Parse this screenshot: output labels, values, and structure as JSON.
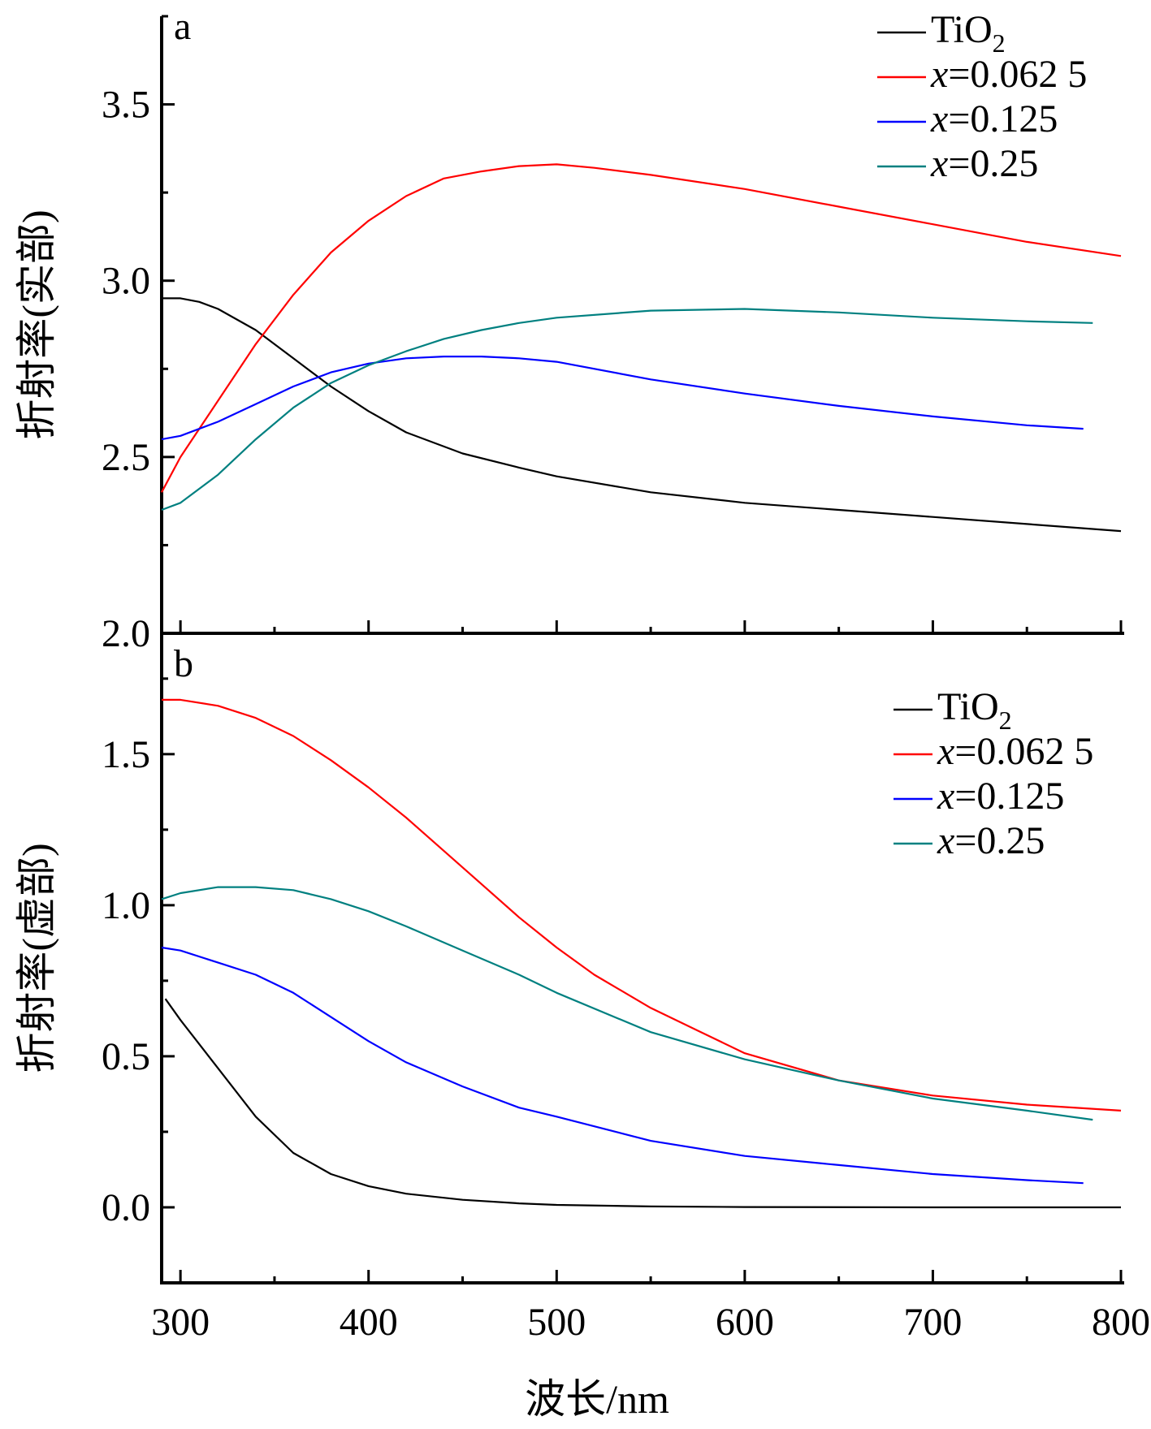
{
  "xlabel": "波长/nm",
  "chart_data": [
    {
      "type": "line",
      "panel_label": "a",
      "ylabel": "折射率(实部)",
      "xlim": [
        290,
        800
      ],
      "ylim": [
        2.0,
        3.75
      ],
      "xticks": [
        300,
        400,
        500,
        600,
        700,
        800
      ],
      "yticks": [
        2.0,
        2.5,
        3.0,
        3.5
      ],
      "ytick_labels": [
        "2.0",
        "2.5",
        "3.0",
        "3.5"
      ],
      "legend_position": "top-right",
      "series": [
        {
          "name": "TiO2",
          "legend": {
            "main": "TiO",
            "sub": "2"
          },
          "color": "#000000",
          "x": [
            290,
            300,
            310,
            320,
            340,
            360,
            380,
            400,
            420,
            450,
            480,
            500,
            550,
            600,
            650,
            700,
            750,
            800
          ],
          "y": [
            2.95,
            2.95,
            2.94,
            2.92,
            2.86,
            2.78,
            2.7,
            2.63,
            2.57,
            2.51,
            2.47,
            2.445,
            2.4,
            2.37,
            2.35,
            2.33,
            2.31,
            2.29
          ]
        },
        {
          "name": "x=0.062 5",
          "legend": {
            "var": "x",
            "rest": "=0.062 5"
          },
          "color": "#ff0000",
          "x": [
            290,
            300,
            320,
            340,
            360,
            380,
            400,
            420,
            440,
            460,
            480,
            500,
            520,
            550,
            600,
            650,
            700,
            750,
            800
          ],
          "y": [
            2.4,
            2.5,
            2.66,
            2.82,
            2.96,
            3.08,
            3.17,
            3.24,
            3.29,
            3.31,
            3.325,
            3.33,
            3.32,
            3.3,
            3.26,
            3.21,
            3.16,
            3.11,
            3.07
          ]
        },
        {
          "name": "x=0.125",
          "legend": {
            "var": "x",
            "rest": "=0.125"
          },
          "color": "#0000ff",
          "x": [
            290,
            300,
            320,
            340,
            360,
            380,
            400,
            420,
            440,
            460,
            480,
            500,
            550,
            600,
            650,
            700,
            750,
            780
          ],
          "y": [
            2.55,
            2.56,
            2.6,
            2.65,
            2.7,
            2.74,
            2.765,
            2.78,
            2.785,
            2.785,
            2.78,
            2.77,
            2.72,
            2.68,
            2.645,
            2.615,
            2.59,
            2.58
          ]
        },
        {
          "name": "x=0.25",
          "legend": {
            "var": "x",
            "rest": "=0.25"
          },
          "color": "#008080",
          "x": [
            290,
            300,
            320,
            340,
            360,
            380,
            400,
            420,
            440,
            460,
            480,
            500,
            550,
            600,
            650,
            700,
            750,
            785
          ],
          "y": [
            2.35,
            2.37,
            2.45,
            2.55,
            2.64,
            2.71,
            2.76,
            2.8,
            2.835,
            2.86,
            2.88,
            2.895,
            2.915,
            2.92,
            2.91,
            2.895,
            2.885,
            2.88
          ]
        }
      ]
    },
    {
      "type": "line",
      "panel_label": "b",
      "ylabel": "折射率(虚部)",
      "xlim": [
        290,
        800
      ],
      "ylim": [
        -0.25,
        1.9
      ],
      "xticks": [
        300,
        400,
        500,
        600,
        700,
        800
      ],
      "xtick_labels": [
        "300",
        "400",
        "500",
        "600",
        "700",
        "800"
      ],
      "yticks": [
        0.0,
        0.5,
        1.0,
        1.5
      ],
      "ytick_labels": [
        "0.0",
        "0.5",
        "1.0",
        "1.5"
      ],
      "legend_position": "top-right",
      "series": [
        {
          "name": "TiO2",
          "legend": {
            "main": "TiO",
            "sub": "2"
          },
          "color": "#000000",
          "x": [
            292,
            300,
            320,
            340,
            360,
            380,
            400,
            420,
            450,
            480,
            500,
            550,
            600,
            700,
            800
          ],
          "y": [
            0.69,
            0.62,
            0.46,
            0.3,
            0.18,
            0.11,
            0.07,
            0.045,
            0.025,
            0.013,
            0.008,
            0.003,
            0.001,
            0.0,
            0.0
          ]
        },
        {
          "name": "x=0.062 5",
          "legend": {
            "var": "x",
            "rest": "=0.062 5"
          },
          "color": "#ff0000",
          "x": [
            290,
            300,
            320,
            340,
            360,
            380,
            400,
            420,
            440,
            460,
            480,
            500,
            520,
            550,
            580,
            600,
            650,
            700,
            750,
            800
          ],
          "y": [
            1.68,
            1.68,
            1.66,
            1.62,
            1.56,
            1.48,
            1.39,
            1.29,
            1.18,
            1.07,
            0.96,
            0.86,
            0.77,
            0.66,
            0.57,
            0.51,
            0.42,
            0.37,
            0.34,
            0.32
          ]
        },
        {
          "name": "x=0.125",
          "legend": {
            "var": "x",
            "rest": "=0.125"
          },
          "color": "#0000ff",
          "x": [
            290,
            300,
            320,
            340,
            360,
            380,
            400,
            420,
            450,
            480,
            500,
            550,
            600,
            650,
            700,
            750,
            780
          ],
          "y": [
            0.86,
            0.85,
            0.81,
            0.77,
            0.71,
            0.63,
            0.55,
            0.48,
            0.4,
            0.33,
            0.3,
            0.22,
            0.17,
            0.14,
            0.11,
            0.09,
            0.08
          ]
        },
        {
          "name": "x=0.25",
          "legend": {
            "var": "x",
            "rest": "=0.25"
          },
          "color": "#008080",
          "x": [
            290,
            300,
            320,
            340,
            360,
            380,
            400,
            420,
            450,
            480,
            500,
            550,
            600,
            650,
            700,
            750,
            785
          ],
          "y": [
            1.02,
            1.04,
            1.06,
            1.06,
            1.05,
            1.02,
            0.98,
            0.93,
            0.85,
            0.77,
            0.71,
            0.58,
            0.49,
            0.42,
            0.36,
            0.32,
            0.29
          ]
        }
      ]
    }
  ]
}
